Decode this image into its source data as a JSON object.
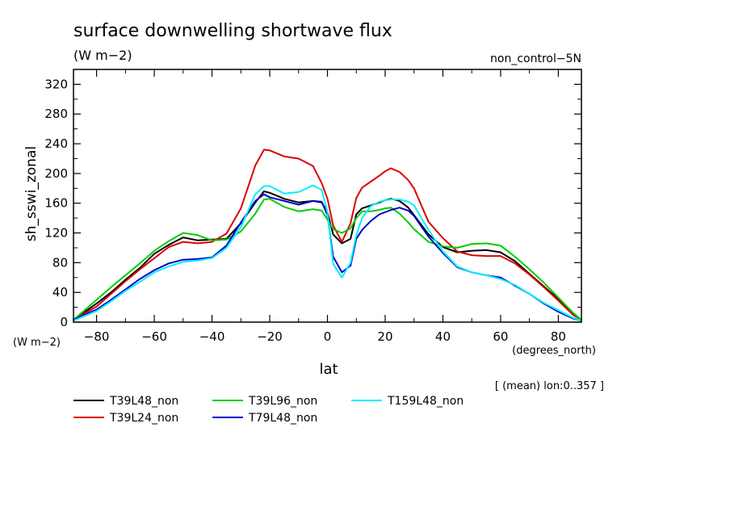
{
  "chart_data": {
    "type": "line",
    "title": "surface downwelling shortwave flux",
    "subtitle": "(W m−2)",
    "experiment": "non_control−5N",
    "xlabel": "lat",
    "xunits": "(degrees_north)",
    "ylabel": "sh_sswi_zonal",
    "yunits": "(W m−2)",
    "footnote": "[ (mean) lon:0..357 ]",
    "xlim": [
      -88,
      88
    ],
    "ylim": [
      0,
      340
    ],
    "xticks": [
      -80,
      -60,
      -40,
      -20,
      0,
      20,
      40,
      60,
      80
    ],
    "yticks": [
      0,
      40,
      80,
      120,
      160,
      200,
      240,
      280,
      320
    ],
    "grid": false,
    "legend_position": "below",
    "series": [
      {
        "name": "T39L48_non",
        "color": "#000000",
        "x": [
          -88,
          -80,
          -75,
          -70,
          -65,
          -60,
          -55,
          -50,
          -45,
          -40,
          -35,
          -30,
          -25,
          -22,
          -20,
          -15,
          -10,
          -5,
          -2,
          0,
          2,
          5,
          8,
          10,
          12,
          15,
          18,
          20,
          22,
          25,
          28,
          30,
          35,
          40,
          45,
          50,
          55,
          60,
          65,
          70,
          75,
          80,
          85,
          88
        ],
        "y": [
          3,
          25,
          40,
          57,
          73,
          92,
          104,
          114,
          110,
          111,
          112,
          133,
          161,
          176,
          174,
          166,
          161,
          163,
          161,
          148,
          118,
          106,
          112,
          145,
          153,
          157,
          161,
          164,
          166,
          163,
          154,
          144,
          118,
          101,
          94,
          96,
          97,
          94,
          82,
          65,
          48,
          31,
          12,
          3
        ]
      },
      {
        "name": "T39L24_non",
        "color": "#dd0000",
        "x": [
          -88,
          -80,
          -75,
          -70,
          -65,
          -60,
          -55,
          -50,
          -45,
          -40,
          -35,
          -30,
          -25,
          -22,
          -20,
          -15,
          -10,
          -5,
          -2,
          0,
          2,
          5,
          8,
          10,
          12,
          15,
          18,
          20,
          22,
          25,
          28,
          30,
          35,
          40,
          45,
          50,
          55,
          60,
          65,
          70,
          75,
          80,
          85,
          88
        ],
        "y": [
          3,
          21,
          38,
          55,
          71,
          86,
          101,
          108,
          106,
          108,
          119,
          153,
          211,
          232,
          231,
          223,
          220,
          210,
          187,
          166,
          130,
          108,
          133,
          167,
          181,
          189,
          197,
          203,
          207,
          202,
          191,
          180,
          135,
          113,
          95,
          90,
          89,
          89,
          79,
          64,
          47,
          29,
          10,
          3
        ]
      },
      {
        "name": "T39L96_non",
        "color": "#00cc00",
        "x": [
          -88,
          -80,
          -75,
          -70,
          -65,
          -60,
          -55,
          -50,
          -45,
          -40,
          -35,
          -30,
          -25,
          -22,
          -20,
          -15,
          -10,
          -5,
          -2,
          0,
          2,
          5,
          8,
          10,
          12,
          15,
          18,
          20,
          22,
          25,
          28,
          30,
          35,
          40,
          45,
          50,
          55,
          60,
          65,
          70,
          75,
          80,
          85,
          88
        ],
        "y": [
          3,
          30,
          47,
          63,
          79,
          96,
          109,
          120,
          117,
          110,
          111,
          122,
          146,
          165,
          166,
          155,
          149,
          152,
          150,
          138,
          125,
          120,
          126,
          140,
          149,
          149,
          151,
          153,
          154,
          146,
          134,
          125,
          108,
          102,
          100,
          105,
          106,
          103,
          88,
          71,
          53,
          33,
          13,
          3
        ]
      },
      {
        "name": "T79L48_non",
        "color": "#0000cc",
        "x": [
          -88,
          -80,
          -75,
          -70,
          -65,
          -60,
          -55,
          -50,
          -45,
          -40,
          -35,
          -30,
          -25,
          -22,
          -20,
          -15,
          -10,
          -5,
          -2,
          0,
          2,
          5,
          8,
          10,
          12,
          15,
          18,
          20,
          22,
          25,
          28,
          30,
          35,
          40,
          45,
          50,
          55,
          60,
          65,
          70,
          75,
          80,
          85,
          88
        ],
        "y": [
          3,
          17,
          30,
          44,
          58,
          70,
          79,
          84,
          85,
          87,
          103,
          134,
          163,
          172,
          168,
          163,
          158,
          163,
          162,
          144,
          88,
          67,
          76,
          112,
          124,
          136,
          145,
          148,
          151,
          154,
          150,
          143,
          115,
          93,
          74,
          67,
          63,
          60,
          49,
          38,
          25,
          14,
          5,
          2
        ]
      },
      {
        "name": "T159L48_non",
        "color": "#00eeff",
        "x": [
          -88,
          -80,
          -75,
          -70,
          -65,
          -60,
          -55,
          -50,
          -45,
          -40,
          -35,
          -30,
          -25,
          -22,
          -20,
          -15,
          -10,
          -5,
          -2,
          0,
          2,
          5,
          8,
          10,
          12,
          15,
          18,
          20,
          22,
          25,
          28,
          30,
          35,
          40,
          45,
          50,
          55,
          60,
          65,
          70,
          75,
          80,
          85,
          88
        ],
        "y": [
          2,
          15,
          28,
          42,
          54,
          67,
          75,
          81,
          83,
          86,
          100,
          128,
          172,
          183,
          183,
          173,
          175,
          184,
          178,
          148,
          78,
          60,
          80,
          117,
          140,
          156,
          162,
          164,
          165,
          165,
          162,
          157,
          124,
          95,
          75,
          67,
          63,
          58,
          50,
          38,
          26,
          16,
          6,
          2
        ]
      }
    ]
  }
}
